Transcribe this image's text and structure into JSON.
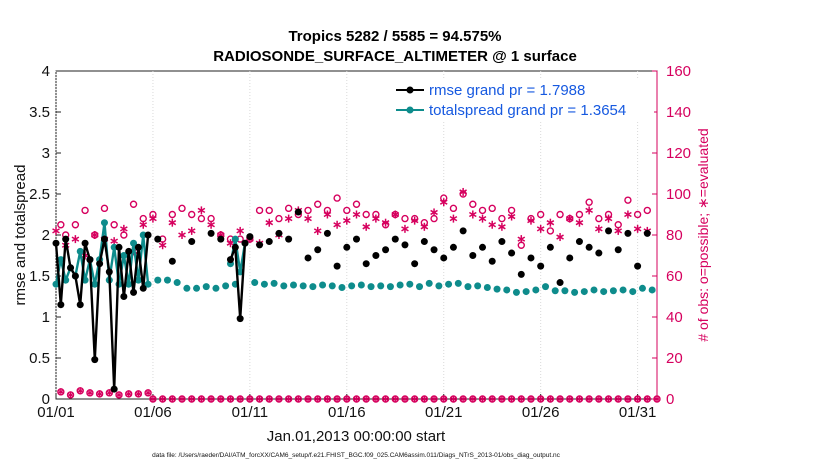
{
  "chart_data": {
    "type": "line",
    "title": "Tropics 5282 / 5585 = 94.575%",
    "subtitle": "RADIOSONDE_SURFACE_ALTIMETER @ 1 surface",
    "xlabel": "Jan.01,2013 00:00:00 start",
    "ylabel": "rmse and totalspread",
    "y2label": "# of obs: o=possible; ∗=evaluated",
    "footnote": "data file: /Users/raeder/DAI/ATM_forcXX/CAM6_setup/f.e21.FHIST_BGC.f09_025.CAM6assim.011/Diags_NTrS_2013-01/obs_diag_output.nc",
    "xlim": [
      1,
      32
    ],
    "xticks": [
      1,
      6,
      11,
      16,
      21,
      26,
      31
    ],
    "xtick_labels": [
      "01/01",
      "01/06",
      "01/11",
      "01/16",
      "01/21",
      "01/26",
      "01/31"
    ],
    "ylim": [
      0,
      4
    ],
    "yticks": [
      "0",
      "0.5",
      "1",
      "1.5",
      "2",
      "2.5",
      "3",
      "3.5",
      "4"
    ],
    "y2lim": [
      0,
      160
    ],
    "y2ticks": [
      "0",
      "20",
      "40",
      "60",
      "80",
      "100",
      "120",
      "140",
      "160"
    ],
    "legend_position": "top-right",
    "series": [
      {
        "name": "rmse grand pr = 1.7988",
        "color": "#000000",
        "axis": "left",
        "x": [
          1,
          1.25,
          1.5,
          1.75,
          2,
          2.25,
          2.5,
          2.75,
          3,
          3.25,
          3.5,
          3.75,
          4,
          4.25,
          4.5,
          4.75,
          5,
          5.25,
          5.5,
          5.75,
          10,
          10.25,
          10.5,
          10.75
        ],
        "values": [
          1.9,
          1.15,
          1.95,
          1.6,
          1.5,
          1.15,
          1.9,
          1.7,
          0.48,
          1.65,
          1.95,
          1.55,
          0.12,
          1.85,
          1.25,
          1.8,
          1.3,
          1.85,
          1.35,
          2.0,
          1.7,
          1.85,
          0.98,
          1.9
        ]
      },
      {
        "name": "totalspread grand pr = 1.3654",
        "color": "#0e8c8c",
        "axis": "left",
        "x": [
          1,
          1.25,
          1.5,
          1.75,
          2,
          2.25,
          2.5,
          2.75,
          3,
          3.25,
          3.5,
          3.75,
          4,
          4.25,
          4.5,
          4.75,
          5,
          5.25,
          5.5,
          5.75,
          10,
          10.25,
          10.5,
          10.75
        ],
        "values": [
          1.4,
          1.7,
          1.45,
          1.6,
          1.5,
          1.8,
          1.45,
          1.7,
          1.4,
          1.7,
          2.15,
          1.45,
          1.85,
          1.4,
          1.75,
          1.4,
          1.9,
          1.45,
          2.0,
          1.4,
          1.65,
          1.95,
          1.55,
          1.9
        ]
      }
    ],
    "rmse_scatter": {
      "x": [
        6.25,
        7,
        8,
        9,
        9.5,
        11,
        11.5,
        12,
        12.5,
        13,
        13.5,
        14,
        14.5,
        15,
        15.5,
        16,
        16.5,
        17,
        17.5,
        18,
        18.5,
        19,
        19.5,
        20,
        20.5,
        21,
        21.5,
        22,
        22.5,
        23,
        23.5,
        24,
        24.5,
        25,
        25.5,
        26,
        26.5,
        27,
        27.5,
        28,
        28.5,
        29,
        29.5,
        30,
        30.5,
        31,
        31.5
      ],
      "values": [
        1.95,
        1.68,
        1.92,
        2.02,
        1.95,
        1.98,
        1.88,
        1.92,
        2.02,
        1.95,
        2.28,
        1.72,
        1.82,
        2.02,
        1.62,
        1.85,
        1.95,
        1.65,
        1.75,
        1.82,
        1.95,
        1.88,
        1.65,
        1.92,
        1.82,
        1.72,
        1.85,
        2.05,
        1.75,
        1.85,
        1.68,
        1.92,
        1.78,
        1.52,
        1.72,
        1.62,
        1.85,
        1.42,
        1.72,
        1.92,
        1.85,
        1.78,
        2.05,
        1.82,
        2.02,
        1.62,
        2.02
      ]
    },
    "spread_scatter": {
      "x": [
        6.25,
        6.75,
        7.25,
        7.75,
        8.25,
        8.75,
        9.25,
        9.75,
        10.25,
        11.25,
        11.75,
        12.25,
        12.75,
        13.25,
        13.75,
        14.25,
        14.75,
        15.25,
        15.75,
        16.25,
        16.75,
        17.25,
        17.75,
        18.25,
        18.75,
        19.25,
        19.75,
        20.25,
        20.75,
        21.25,
        21.75,
        22.25,
        22.75,
        23.25,
        23.75,
        24.25,
        24.75,
        25.25,
        25.75,
        26.25,
        26.75,
        27.25,
        27.75,
        28.25,
        28.75,
        29.25,
        29.75,
        30.25,
        30.75,
        31.25,
        31.75
      ],
      "values": [
        1.45,
        1.45,
        1.42,
        1.35,
        1.35,
        1.37,
        1.35,
        1.38,
        1.4,
        1.42,
        1.4,
        1.41,
        1.38,
        1.39,
        1.38,
        1.37,
        1.39,
        1.38,
        1.36,
        1.38,
        1.39,
        1.37,
        1.38,
        1.37,
        1.39,
        1.4,
        1.37,
        1.41,
        1.38,
        1.4,
        1.41,
        1.37,
        1.38,
        1.36,
        1.34,
        1.33,
        1.3,
        1.31,
        1.33,
        1.37,
        1.32,
        1.32,
        1.3,
        1.31,
        1.33,
        1.31,
        1.32,
        1.33,
        1.31,
        1.35,
        1.33
      ]
    },
    "obs_possible": {
      "x": [
        1.25,
        1.5,
        2,
        2.5,
        3,
        3.5,
        4,
        4.5,
        5,
        5.5,
        6,
        6.5,
        7,
        7.5,
        8,
        8.5,
        9,
        9.5,
        10,
        10.5,
        11,
        11.5,
        12,
        12.5,
        13,
        13.5,
        14,
        14.5,
        15,
        15.5,
        16,
        16.5,
        17,
        17.5,
        18,
        18.5,
        19,
        19.5,
        20,
        20.5,
        21,
        21.5,
        22,
        22.5,
        23,
        23.5,
        24,
        24.5,
        25,
        25.5,
        26,
        26.5,
        27,
        27.5,
        28,
        28.5,
        29,
        29.5,
        30,
        30.5,
        31,
        31.5
      ],
      "values": [
        85,
        80,
        85,
        92,
        80,
        93,
        85,
        80,
        95,
        88,
        90,
        78,
        90,
        93,
        90,
        88,
        88,
        80,
        78,
        78,
        78,
        92,
        92,
        88,
        93,
        90,
        92,
        95,
        92,
        98,
        92,
        95,
        90,
        90,
        85,
        90,
        88,
        88,
        86,
        88,
        98,
        93,
        100,
        95,
        92,
        93,
        88,
        92,
        75,
        88,
        90,
        82,
        90,
        88,
        90,
        96,
        88,
        90,
        85,
        97,
        90,
        92
      ]
    },
    "obs_evaluated": {
      "x": [
        1,
        1.5,
        2,
        2.5,
        3,
        3.5,
        4,
        4.5,
        5,
        5.5,
        6,
        6.5,
        7,
        7.5,
        8,
        8.5,
        9,
        9.5,
        10,
        10.5,
        11,
        11.5,
        12,
        12.5,
        13,
        13.5,
        14,
        14.5,
        15,
        15.5,
        16,
        16.5,
        17,
        17.5,
        18,
        18.5,
        19,
        19.5,
        20,
        20.5,
        21,
        21.5,
        22,
        22.5,
        23,
        23.5,
        24,
        24.5,
        25,
        25.5,
        26,
        26.5,
        27,
        27.5,
        28,
        28.5,
        29,
        29.5,
        30,
        30.5,
        31,
        31.5
      ],
      "values": [
        82,
        75,
        78,
        70,
        80,
        78,
        77,
        83,
        72,
        85,
        88,
        75,
        86,
        80,
        82,
        92,
        85,
        80,
        76,
        82,
        78,
        76,
        86,
        80,
        88,
        92,
        88,
        82,
        90,
        85,
        87,
        90,
        84,
        88,
        86,
        90,
        83,
        87,
        84,
        91,
        96,
        88,
        101,
        90,
        88,
        85,
        84,
        89,
        78,
        87,
        83,
        86,
        79,
        88,
        86,
        92,
        83,
        88,
        82,
        90,
        83,
        82
      ]
    },
    "obs_zero_possible_x": [
      6,
      6.5,
      7,
      7.5,
      8,
      8.5,
      9,
      9.5,
      10,
      10.5,
      11,
      11.5,
      12,
      12.5,
      13,
      13.5,
      14,
      14.5,
      15,
      15.5,
      16,
      16.5,
      17,
      17.5,
      18,
      18.5,
      19,
      19.5,
      20,
      20.5,
      21,
      21.5,
      22,
      22.5,
      23,
      23.5,
      24,
      24.5,
      25,
      25.5,
      26,
      26.5,
      27,
      27.5,
      28,
      28.5,
      29,
      29.5,
      30,
      30.5,
      31,
      31.5,
      32
    ],
    "obs_low_early": {
      "x": [
        1.25,
        1.75,
        2.25,
        2.75,
        3.25,
        3.75,
        4.25,
        4.75,
        5.25,
        5.75
      ],
      "values": [
        3.5,
        2,
        4,
        3,
        2.5,
        3,
        2,
        2.5,
        2.5,
        3
      ]
    }
  }
}
